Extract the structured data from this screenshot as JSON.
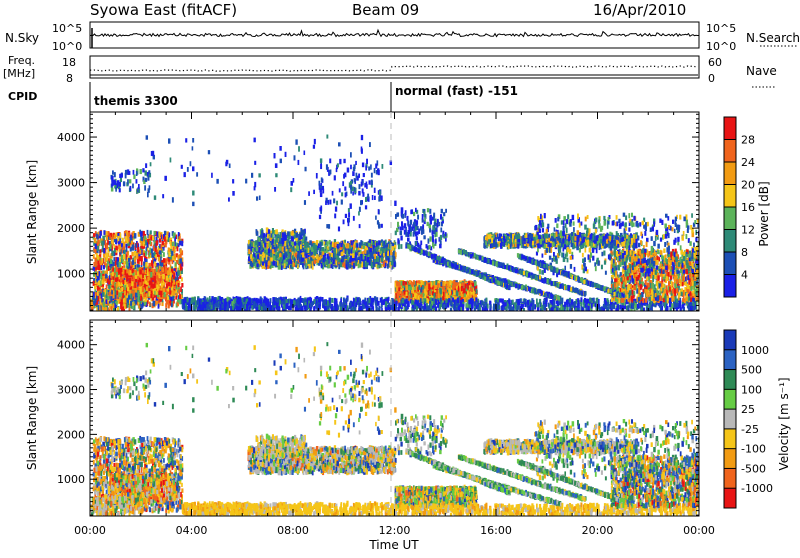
{
  "header": {
    "station": "Syowa East (fitACF)",
    "beam": "Beam 09",
    "date": "16/Apr/2010"
  },
  "status": {
    "nsky_label": "N.Sky",
    "nsky_top": "10^5",
    "nsky_bottom": "10^0",
    "nsearch_label": "N.Search",
    "nsearch_top": "10^5",
    "nsearch_bottom": "10^0",
    "freq_label": "Freq.",
    "freq_unit": "[MHz]",
    "freq_top": "18",
    "freq_bottom": "8",
    "nave_label": "Nave",
    "nave_top": "60",
    "nave_bottom": "0",
    "cpid_label": "CPID",
    "cpid_first": "themis 3300",
    "cpid_second": "normal (fast) -151"
  },
  "colors": {
    "power": [
      "#1a20e6",
      "#1c4fb5",
      "#2e8a77",
      "#5cb35a",
      "#f5c518",
      "#f29b12",
      "#f0641c",
      "#e81414"
    ],
    "velocity": [
      "#1a3ab8",
      "#2b62c2",
      "#2e8a55",
      "#66cc44",
      "#b8b8b8",
      "#f5c518",
      "#f29b12",
      "#f0641c",
      "#e81414"
    ]
  },
  "chart_data": [
    {
      "type": "heatmap",
      "name": "power",
      "xlabel": "",
      "ylabel": "Slant Range [km]",
      "x_range_hours": [
        0,
        24
      ],
      "ylim": [
        180,
        4550
      ],
      "yticks": [
        "1000",
        "2000",
        "3000",
        "4000"
      ],
      "ytick_values": [
        1000,
        2000,
        3000,
        4000
      ],
      "colorbar_label": "Power [dB]",
      "colorbar_ticks": [
        "4",
        "8",
        "12",
        "16",
        "20",
        "24",
        "28"
      ],
      "colorbar_tick_values": [
        4,
        8,
        12,
        16,
        20,
        24,
        28
      ],
      "colorbar_range": [
        0,
        32
      ]
    },
    {
      "type": "heatmap",
      "name": "velocity",
      "xlabel": "Time UT",
      "ylabel": "Slant Range [km]",
      "x_range_hours": [
        0,
        24
      ],
      "xticks": [
        "00:00",
        "04:00",
        "08:00",
        "12:00",
        "16:00",
        "20:00",
        "00:00"
      ],
      "xtick_values": [
        0,
        4,
        8,
        12,
        16,
        20,
        24
      ],
      "ylim": [
        180,
        4550
      ],
      "yticks": [
        "1000",
        "2000",
        "3000",
        "4000"
      ],
      "ytick_values": [
        1000,
        2000,
        3000,
        4000
      ],
      "colorbar_label": "Velocity [m s⁻¹]",
      "colorbar_ticks": [
        "1000",
        "500",
        "100",
        "25",
        "-25",
        "-100",
        "-500",
        "-1000"
      ]
    }
  ]
}
